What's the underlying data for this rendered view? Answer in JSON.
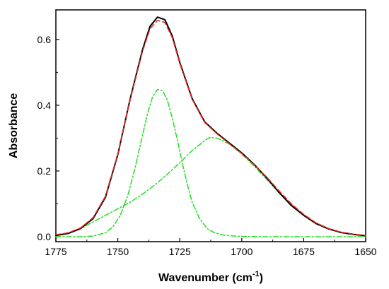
{
  "chart_data": {
    "type": "line",
    "title": "",
    "xlabel": "Wavenumber (cm",
    "xlabel_sup": "-1",
    "xlabel_suffix": ")",
    "ylabel": "Absorbance",
    "xlim": [
      1775,
      1650
    ],
    "ylim": [
      -0.015,
      0.69
    ],
    "x_reversed": true,
    "x_ticks": [
      1775,
      1750,
      1725,
      1700,
      1675,
      1650
    ],
    "y_ticks": [
      0.0,
      0.2,
      0.4,
      0.6
    ],
    "grid": false,
    "legend": "none",
    "series": [
      {
        "kind": "measured",
        "color": "#000000",
        "style": "solid",
        "x": [
          1775,
          1770,
          1765,
          1760,
          1755,
          1750,
          1745,
          1740,
          1737,
          1734,
          1731,
          1728,
          1725,
          1720,
          1715,
          1710,
          1705,
          1700,
          1695,
          1690,
          1685,
          1680,
          1675,
          1670,
          1665,
          1660,
          1655,
          1650
        ],
        "y": [
          0.004,
          0.01,
          0.025,
          0.055,
          0.12,
          0.25,
          0.42,
          0.57,
          0.64,
          0.668,
          0.66,
          0.61,
          0.53,
          0.42,
          0.35,
          0.315,
          0.285,
          0.255,
          0.22,
          0.18,
          0.135,
          0.095,
          0.065,
          0.04,
          0.024,
          0.013,
          0.007,
          0.003
        ]
      },
      {
        "kind": "fit-sum",
        "color": "#e8261f",
        "style": "dashed",
        "x": [
          1775,
          1770,
          1765,
          1760,
          1755,
          1750,
          1745,
          1740,
          1737,
          1734,
          1731,
          1728,
          1725,
          1720,
          1715,
          1710,
          1705,
          1700,
          1695,
          1690,
          1685,
          1680,
          1675,
          1670,
          1665,
          1660,
          1655,
          1650
        ],
        "y": [
          0.006,
          0.012,
          0.027,
          0.058,
          0.123,
          0.252,
          0.418,
          0.565,
          0.633,
          0.658,
          0.652,
          0.605,
          0.527,
          0.418,
          0.348,
          0.313,
          0.283,
          0.253,
          0.219,
          0.182,
          0.14,
          0.1,
          0.068,
          0.042,
          0.025,
          0.014,
          0.008,
          0.004
        ]
      },
      {
        "kind": "component-1",
        "color": "#22dd22",
        "style": "dashdot",
        "x": [
          1775,
          1765,
          1760,
          1755,
          1752,
          1749,
          1746,
          1743,
          1740,
          1738,
          1736,
          1734,
          1732,
          1730,
          1728,
          1726,
          1724,
          1722,
          1720,
          1717,
          1714,
          1711,
          1708,
          1705,
          1700,
          1690,
          1675,
          1650
        ],
        "y": [
          0.0,
          0.0,
          0.002,
          0.012,
          0.03,
          0.065,
          0.125,
          0.21,
          0.31,
          0.375,
          0.425,
          0.448,
          0.445,
          0.415,
          0.36,
          0.295,
          0.225,
          0.16,
          0.105,
          0.055,
          0.025,
          0.012,
          0.006,
          0.003,
          0.001,
          0.0,
          0.0,
          0.0
        ]
      },
      {
        "kind": "component-2",
        "color": "#22dd22",
        "style": "dashdot",
        "x": [
          1775,
          1770,
          1765,
          1760,
          1755,
          1750,
          1745,
          1740,
          1735,
          1730,
          1725,
          1720,
          1715,
          1713,
          1710,
          1705,
          1700,
          1695,
          1690,
          1685,
          1680,
          1675,
          1670,
          1665,
          1660,
          1655,
          1650
        ],
        "y": [
          0.003,
          0.01,
          0.025,
          0.045,
          0.065,
          0.085,
          0.105,
          0.13,
          0.158,
          0.19,
          0.225,
          0.262,
          0.292,
          0.302,
          0.3,
          0.282,
          0.252,
          0.215,
          0.175,
          0.135,
          0.098,
          0.066,
          0.042,
          0.025,
          0.013,
          0.007,
          0.003
        ]
      }
    ]
  }
}
